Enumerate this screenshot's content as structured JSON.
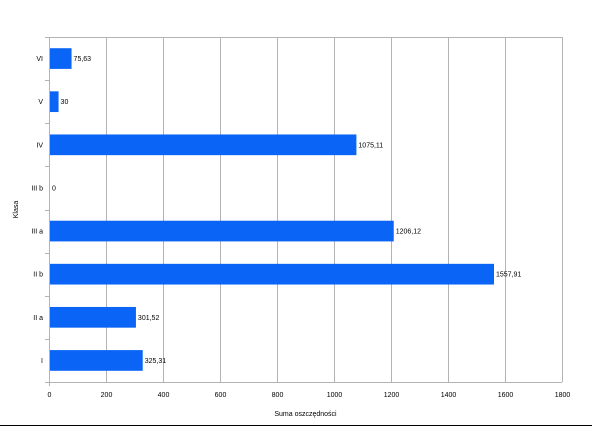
{
  "chart_data": {
    "type": "bar",
    "orientation": "horizontal",
    "categories": [
      "I",
      "II a",
      "II b",
      "III a",
      "III b",
      "IV",
      "V",
      "VI"
    ],
    "values": [
      325.31,
      301.52,
      1557.91,
      1206.12,
      0,
      1075.11,
      30,
      75.63
    ],
    "value_labels": [
      "325,31",
      "301,52",
      "1557,91",
      "1206,12",
      "0",
      "1075,11",
      "30",
      "75,63"
    ],
    "xlabel": "Suma oszczędności",
    "ylabel": "Klasa",
    "xlim": [
      0,
      1800
    ],
    "xticks": [
      0,
      200,
      400,
      600,
      800,
      1000,
      1200,
      1400,
      1600,
      1800
    ],
    "grid": "vertical",
    "bar_color": "#0a64f5",
    "legend": "none"
  }
}
